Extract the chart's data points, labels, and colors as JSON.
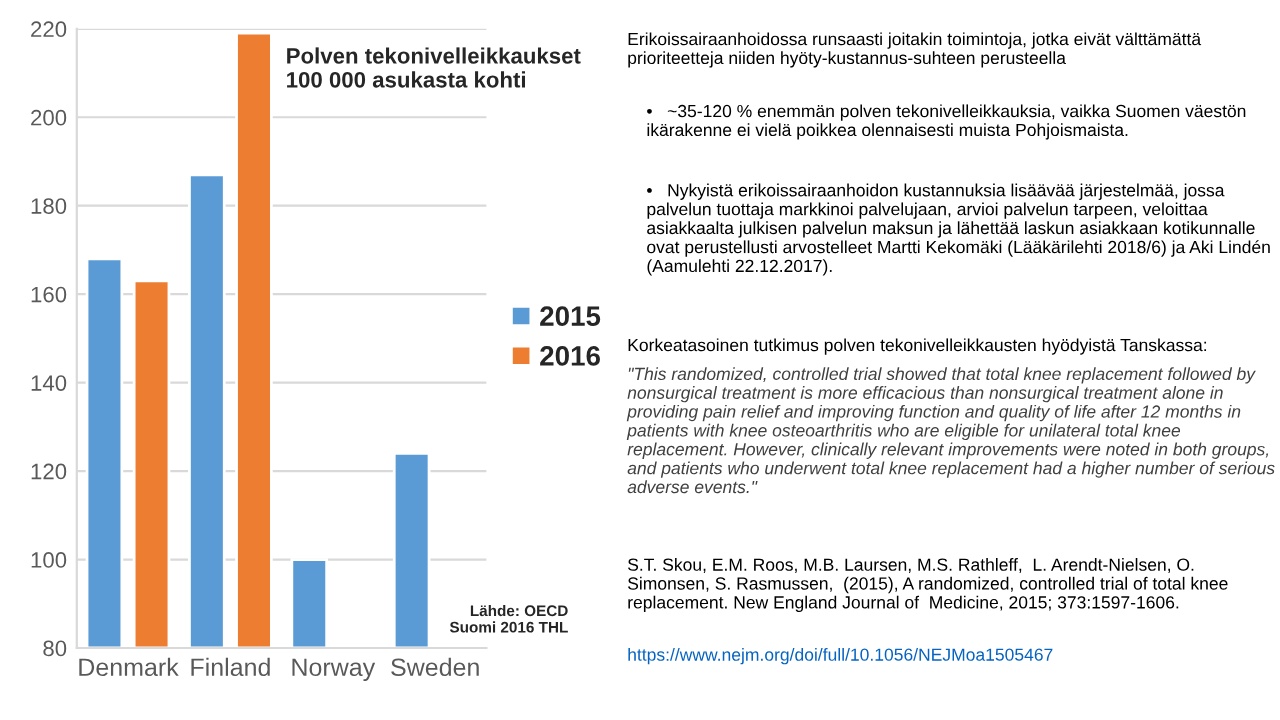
{
  "chart_data": {
    "type": "bar",
    "title": "Polven tekonivelleikkaukset\n100 000 asukasta kohti",
    "categories": [
      "Denmark",
      "Finland",
      "Norway",
      "Sweden"
    ],
    "series": [
      {
        "name": "2015",
        "color": "#5b9bd5",
        "values": [
          168,
          187,
          100,
          124
        ]
      },
      {
        "name": "2016",
        "color": "#ed7d31",
        "values": [
          163,
          219,
          null,
          null
        ]
      }
    ],
    "ylim": [
      80,
      220
    ],
    "yticks": [
      80,
      100,
      120,
      140,
      160,
      180,
      200,
      220
    ],
    "grid": "y",
    "legend": "right",
    "annotations": [
      "Lähde: OECD\nSuomi 2016 THL",
      "Erikoissairaanhoidossa runsaasti joitakin toimintoja, jotka eivät välttämättä prioriteetteja niiden hyöty-kustannus-suhteen perusteella",
      "•   ~35-120 % enemmän polven tekonivelleikkauksia, vaikka Suomen väestön ikärakenne ei vielä poikkea olennaisesti muista Pohjoismaista.",
      "•   Nykyistä erikoissairaanhoidon kustannuksia lisäävää järjestelmää, jossa palvelun tuottaja markkinoi palvelujaan, arvioi palvelun tarpeen, veloittaa asiakkaalta julkisen palvelun maksun ja lähettää laskun asiakkaan kotikunnalle ovat perustellusti arvostelleet Martti Kekomäki (Lääkärilehti 2018/6) ja Aki Lindén (Aamulehti 22.12.2017).",
      "Korkeatasoinen tutkimus polven tekonivelleikkausten hyödyistä Tanskassa:",
      "\"This randomized, controlled trial showed that total knee replacement followed by nonsurgical treatment is more efficacious than nonsurgical treatment alone in providing pain relief and improving function and quality of life after 12 months in patients with knee osteoarthritis who are eligible for unilateral total knee replacement. However, clinically relevant improvements were noted in both groups, and patients who underwent total knee replacement had a higher number of serious adverse events.\"",
      "S.T. Skou, E.M. Roos, M.B. Laursen, M.S. Rathleff,  L. Arendt-Nielsen, O. Simonsen, S. Rasmussen,  (2015), A randomized, controlled trial of total knee replacement. New England Journal of  Medicine, 2015; 373:1597-1606.",
      "https://www.nejm.org/doi/full/10.1056/NEJMoa1505467"
    ]
  }
}
